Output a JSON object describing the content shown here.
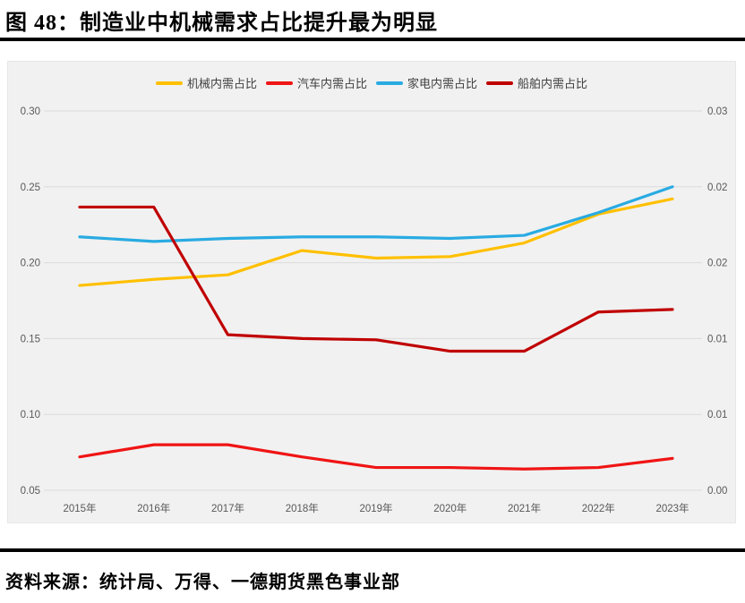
{
  "figure": {
    "title": "图 48：制造业中机械需求占比提升最为明显"
  },
  "source": {
    "label": "资料来源：统计局、万得、一德期货黑色事业部"
  },
  "colors": {
    "panel_background": "#f1f1f1",
    "gridline": "#dbdbdb",
    "tick_text": "#595959",
    "rule": "#000000"
  },
  "chart_data": {
    "type": "line",
    "title": "制造业中机械需求占比提升最为明显",
    "categories": [
      "2015年",
      "2016年",
      "2017年",
      "2018年",
      "2019年",
      "2020年",
      "2021年",
      "2022年",
      "2023年"
    ],
    "series": [
      {
        "name": "机械内需占比",
        "axis": "left",
        "color": "#FFC000",
        "values": [
          0.185,
          0.189,
          0.192,
          0.208,
          0.203,
          0.204,
          0.213,
          0.232,
          0.242
        ]
      },
      {
        "name": "汽车内需占比",
        "axis": "left",
        "color": "#F01414",
        "values": [
          0.072,
          0.08,
          0.08,
          0.072,
          0.065,
          0.065,
          0.064,
          0.065,
          0.071
        ]
      },
      {
        "name": "家电内需占比",
        "axis": "left",
        "color": "#29ABE2",
        "values": [
          0.217,
          0.214,
          0.216,
          0.217,
          0.217,
          0.216,
          0.218,
          0.233,
          0.25
        ]
      },
      {
        "name": "船舶内需占比",
        "axis": "right",
        "color": "#C00000",
        "values": [
          0.0224,
          0.0224,
          0.0123,
          0.012,
          0.0119,
          0.011,
          0.011,
          0.0141,
          0.0143
        ]
      }
    ],
    "left_axis": {
      "min": 0.05,
      "max": 0.3,
      "ticks": [
        "0.30",
        "0.25",
        "0.20",
        "0.15",
        "0.10",
        "0.05"
      ]
    },
    "right_axis": {
      "min": 0.0,
      "max": 0.03,
      "ticks": [
        "0.03",
        "0.02",
        "0.02",
        "0.01",
        "0.01",
        "0.00"
      ]
    },
    "grid": true,
    "legend_position": "top",
    "xlabel": "",
    "ylabel": ""
  }
}
